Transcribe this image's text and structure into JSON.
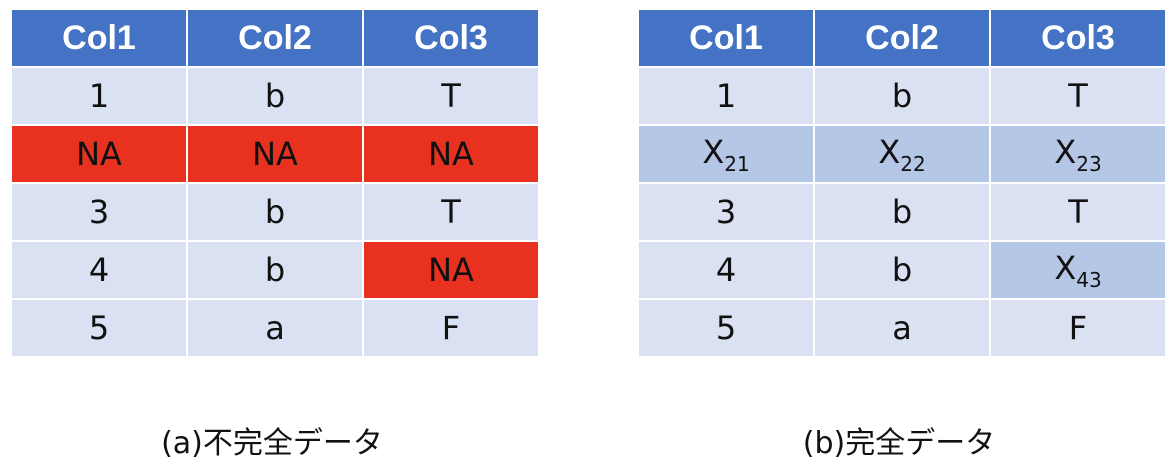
{
  "tables": [
    {
      "caption": "(a)不完全データ",
      "headers": [
        "Col1",
        "Col2",
        "Col3"
      ],
      "rows": [
        [
          {
            "text": "1",
            "state": "normal"
          },
          {
            "text": "b",
            "state": "normal"
          },
          {
            "text": "T",
            "state": "normal"
          }
        ],
        [
          {
            "text": "NA",
            "state": "missing"
          },
          {
            "text": "NA",
            "state": "missing"
          },
          {
            "text": "NA",
            "state": "missing"
          }
        ],
        [
          {
            "text": "3",
            "state": "normal"
          },
          {
            "text": "b",
            "state": "normal"
          },
          {
            "text": "T",
            "state": "normal"
          }
        ],
        [
          {
            "text": "4",
            "state": "normal"
          },
          {
            "text": "b",
            "state": "normal"
          },
          {
            "text": "NA",
            "state": "missing"
          }
        ],
        [
          {
            "text": "5",
            "state": "normal"
          },
          {
            "text": "a",
            "state": "normal"
          },
          {
            "text": "F",
            "state": "normal"
          }
        ]
      ]
    },
    {
      "caption": "(b)完全データ",
      "headers": [
        "Col1",
        "Col2",
        "Col3"
      ],
      "rows": [
        [
          {
            "text": "1",
            "state": "normal"
          },
          {
            "text": "b",
            "state": "normal"
          },
          {
            "text": "T",
            "state": "normal"
          }
        ],
        [
          {
            "text": "X",
            "sub": "21",
            "state": "imputed"
          },
          {
            "text": "X",
            "sub": "22",
            "state": "imputed"
          },
          {
            "text": "X",
            "sub": "23",
            "state": "imputed"
          }
        ],
        [
          {
            "text": "3",
            "state": "normal"
          },
          {
            "text": "b",
            "state": "normal"
          },
          {
            "text": "T",
            "state": "normal"
          }
        ],
        [
          {
            "text": "4",
            "state": "normal"
          },
          {
            "text": "b",
            "state": "normal"
          },
          {
            "text": "X",
            "sub": "43",
            "state": "imputed"
          }
        ],
        [
          {
            "text": "5",
            "state": "normal"
          },
          {
            "text": "a",
            "state": "normal"
          },
          {
            "text": "F",
            "state": "normal"
          }
        ]
      ]
    }
  ],
  "colors": {
    "header": "#4472c4",
    "cell": "#d9e1f2",
    "missing": "#e8321f",
    "imputed": "#b4c7e7"
  }
}
